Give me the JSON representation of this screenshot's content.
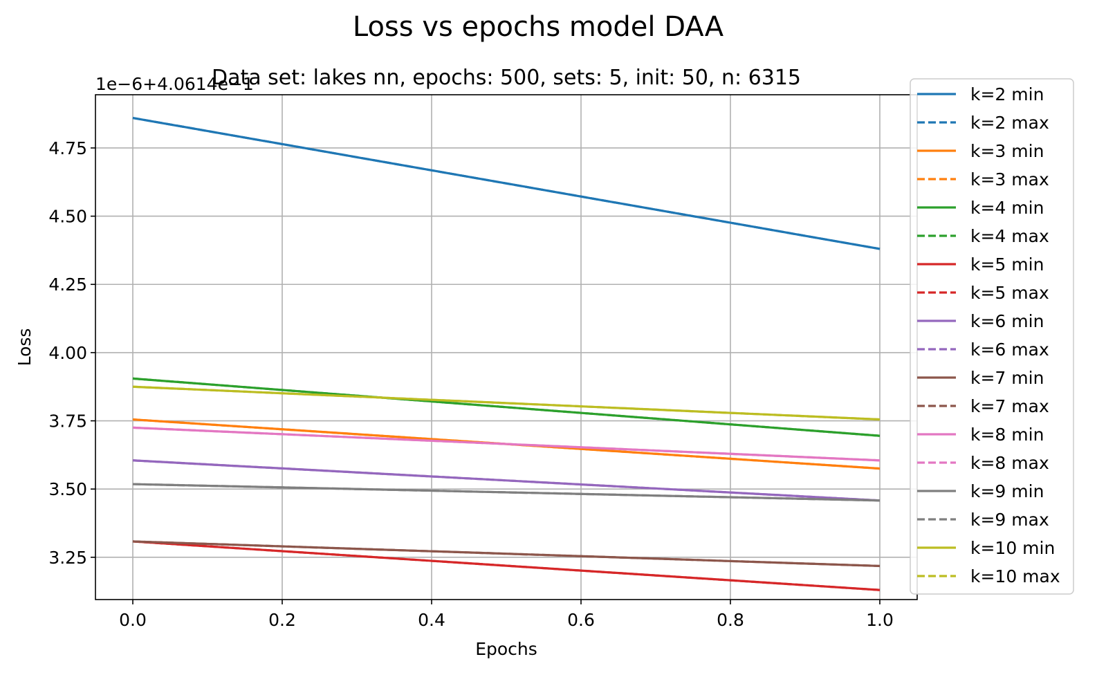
{
  "chart_data": {
    "type": "line",
    "title": "Loss vs epochs model DAA",
    "subtitle": "Data set:  lakes nn, epochs: 500, sets: 5, init: 50, n: 6315",
    "xlabel": "Epochs",
    "ylabel": "Loss",
    "offset_text": "1e−6+4.0614e−1",
    "xlim": [
      -0.05,
      1.05
    ],
    "ylim": [
      3.095,
      4.945
    ],
    "x_ticks": [
      0.0,
      0.2,
      0.4,
      0.6,
      0.8,
      1.0
    ],
    "x_tick_labels": [
      "0.0",
      "0.2",
      "0.4",
      "0.6",
      "0.8",
      "1.0"
    ],
    "y_ticks": [
      3.25,
      3.5,
      3.75,
      4.0,
      4.25,
      4.5,
      4.75
    ],
    "y_tick_labels": [
      "3.25",
      "3.50",
      "3.75",
      "4.00",
      "4.25",
      "4.50",
      "4.75"
    ],
    "grid": true,
    "legend_position": "right, outside top",
    "x": [
      0.0,
      1.0
    ],
    "series": [
      {
        "name": "k=2 min",
        "color": "#1f77b4",
        "dash": false,
        "values": [
          4.86,
          4.38
        ]
      },
      {
        "name": "k=2 max",
        "color": "#1f77b4",
        "dash": true,
        "values": [
          4.86,
          4.38
        ]
      },
      {
        "name": "k=3 min",
        "color": "#ff7f0e",
        "dash": false,
        "values": [
          3.755,
          3.575
        ]
      },
      {
        "name": "k=3 max",
        "color": "#ff7f0e",
        "dash": true,
        "values": [
          3.755,
          3.575
        ]
      },
      {
        "name": "k=4 min",
        "color": "#2ca02c",
        "dash": false,
        "values": [
          3.905,
          3.695
        ]
      },
      {
        "name": "k=4 max",
        "color": "#2ca02c",
        "dash": true,
        "values": [
          3.905,
          3.695
        ]
      },
      {
        "name": "k=5 min",
        "color": "#d62728",
        "dash": false,
        "values": [
          3.308,
          3.13
        ]
      },
      {
        "name": "k=5 max",
        "color": "#d62728",
        "dash": true,
        "values": [
          3.308,
          3.13
        ]
      },
      {
        "name": "k=6 min",
        "color": "#9467bd",
        "dash": false,
        "values": [
          3.605,
          3.458
        ]
      },
      {
        "name": "k=6 max",
        "color": "#9467bd",
        "dash": true,
        "values": [
          3.605,
          3.458
        ]
      },
      {
        "name": "k=7 min",
        "color": "#8c564b",
        "dash": false,
        "values": [
          3.308,
          3.218
        ]
      },
      {
        "name": "k=7 max",
        "color": "#8c564b",
        "dash": true,
        "values": [
          3.308,
          3.218
        ]
      },
      {
        "name": "k=8 min",
        "color": "#e377c2",
        "dash": false,
        "values": [
          3.725,
          3.605
        ]
      },
      {
        "name": "k=8 max",
        "color": "#e377c2",
        "dash": true,
        "values": [
          3.725,
          3.605
        ]
      },
      {
        "name": "k=9 min",
        "color": "#7f7f7f",
        "dash": false,
        "values": [
          3.518,
          3.458
        ]
      },
      {
        "name": "k=9 max",
        "color": "#7f7f7f",
        "dash": true,
        "values": [
          3.518,
          3.458
        ]
      },
      {
        "name": "k=10 min",
        "color": "#bcbd22",
        "dash": false,
        "values": [
          3.875,
          3.755
        ]
      },
      {
        "name": "k=10 max",
        "color": "#bcbd22",
        "dash": true,
        "values": [
          3.875,
          3.755
        ]
      }
    ]
  }
}
